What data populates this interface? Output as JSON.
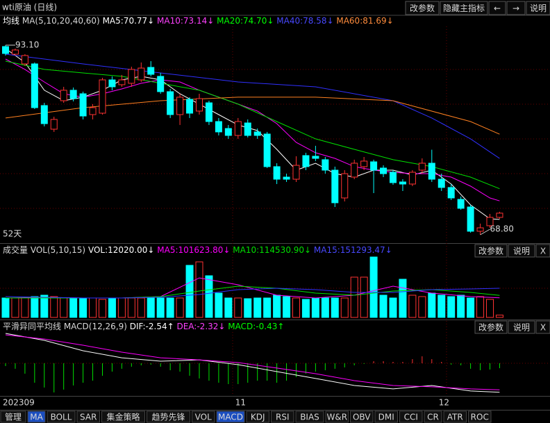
{
  "header": {
    "title": "wti原油 (日线)",
    "buttons": [
      "改参数",
      "隐藏主指标",
      "←",
      "→",
      "说明"
    ]
  },
  "price_panel": {
    "type": "candlestick",
    "legend_title": "均线",
    "legend_params": "MA(5,10,20,40,60)",
    "dates": [
      "202309",
      null,
      null,
      null,
      null,
      null,
      null,
      null,
      null,
      null,
      null,
      null,
      null,
      null,
      null,
      null,
      null,
      null,
      null,
      null,
      null,
      null,
      null,
      null,
      "11",
      null,
      null,
      null,
      null,
      null,
      null,
      null,
      null,
      null,
      null,
      null,
      null,
      null,
      null,
      null,
      null,
      null,
      null,
      null,
      null,
      "12",
      null,
      null,
      null,
      null,
      null,
      null
    ],
    "candles": {
      "open": [
        92.92,
        91.94,
        90.7,
        90.7,
        85.36,
        82.33,
        85.98,
        87.32,
        86.87,
        84.2,
        84.38,
        88.65,
        88.03,
        88.21,
        88.65,
        90.25,
        89.1,
        87.14,
        84.2,
        86.16,
        84.65,
        85.71,
        83.31,
        82.42,
        81.53,
        83.13,
        81.98,
        81.71,
        77.53,
        76.19,
        75.92,
        78.95,
        78.86,
        78.42,
        77.08,
        73.52,
        76.19,
        77.53,
        78.15,
        77.35,
        76.81,
        75.57,
        75.3,
        77.08,
        77.97,
        75.92,
        74.86,
        73.34,
        72.36,
        69.25,
        69.96,
        71.03
      ],
      "high": [
        93.1,
        92.66,
        91.94,
        90.88,
        85.71,
        83.93,
        87.76,
        87.67,
        87.14,
        85.54,
        88.92,
        89.1,
        89.28,
        90.34,
        90.88,
        91.05,
        89.54,
        87.49,
        86.87,
        86.43,
        86.87,
        85.98,
        83.76,
        82.87,
        83.76,
        83.58,
        82.42,
        81.98,
        77.97,
        76.63,
        78.86,
        79.31,
        80.2,
        78.77,
        77.53,
        77.08,
        78.42,
        78.77,
        78.42,
        77.7,
        77.08,
        75.92,
        77.08,
        78.59,
        79.7,
        76.63,
        75.3,
        73.7,
        72.63,
        70.23,
        71.47,
        71.75
      ],
      "low": [
        91.77,
        91.77,
        90.43,
        84.91,
        82.69,
        81.98,
        85.71,
        85.89,
        83.58,
        83.58,
        84.2,
        87.32,
        87.76,
        87.76,
        88.38,
        89.1,
        86.87,
        83.76,
        82.87,
        83.76,
        84.2,
        82.87,
        81.53,
        81.09,
        81.09,
        81.27,
        81.09,
        77.35,
        75.3,
        75.57,
        75.57,
        77.08,
        78.24,
        76.63,
        72.36,
        73.07,
        75.92,
        77.08,
        74.14,
        76.19,
        75.21,
        74.41,
        75.03,
        76.63,
        75.57,
        74.41,
        73.25,
        72.01,
        69.07,
        68.8,
        69.69,
        70.85
      ],
      "close": [
        92.03,
        92.48,
        91.77,
        85.09,
        83.04,
        83.58,
        87.32,
        86.25,
        84.02,
        85.09,
        88.65,
        87.76,
        88.65,
        89.99,
        90.16,
        89.36,
        87.14,
        84.2,
        86.43,
        84.38,
        86.25,
        83.31,
        81.98,
        81.53,
        83.31,
        81.53,
        81.53,
        77.53,
        75.92,
        75.92,
        77.7,
        77.53,
        78.59,
        77.08,
        72.9,
        76.63,
        77.97,
        78.24,
        77.08,
        76.63,
        75.48,
        75.3,
        76.81,
        77.97,
        75.92,
        74.86,
        73.52,
        72.19,
        69.25,
        69.69,
        71.03,
        71.57
      ]
    },
    "series": [
      {
        "label": "MA5:70.77↓",
        "color": "#ffffff",
        "text_color": "#ffffff",
        "x": [
          0,
          2,
          4,
          6,
          8,
          10,
          12,
          14,
          16,
          18,
          20,
          22,
          24,
          26,
          28,
          30,
          32,
          34,
          36,
          38,
          40,
          42,
          44,
          46,
          48,
          50,
          51
        ],
        "values": [
          92.66,
          90.88,
          87.32,
          85.98,
          86.43,
          87.32,
          88.65,
          89.1,
          88.65,
          86.87,
          85.54,
          84.2,
          82.87,
          82.15,
          79.75,
          77.08,
          77.97,
          76.63,
          76.19,
          77.08,
          77.08,
          76.46,
          77.08,
          75.3,
          72.63,
          70.85,
          70.77
        ]
      },
      {
        "label": "MA10:73.14↓",
        "color": "#ff00ff",
        "text_color": "#ff40ff",
        "x": [
          0,
          2,
          4,
          6,
          8,
          10,
          12,
          14,
          16,
          18,
          20,
          22,
          24,
          26,
          28,
          30,
          32,
          34,
          36,
          38,
          40,
          42,
          44,
          46,
          48,
          50,
          51
        ],
        "values": [
          91.32,
          89.99,
          88.38,
          86.87,
          86.43,
          86.87,
          87.49,
          88.21,
          88.65,
          88.38,
          87.32,
          86.43,
          85.54,
          84.65,
          83.04,
          80.64,
          79.31,
          78.59,
          77.53,
          77.08,
          76.81,
          76.63,
          76.63,
          76.19,
          75.03,
          73.52,
          73.14
        ]
      },
      {
        "label": "MA20:74.70↓",
        "color": "#00e000",
        "text_color": "#00ff00",
        "x": [
          0,
          4,
          8,
          12,
          16,
          20,
          24,
          28,
          32,
          36,
          40,
          44,
          48,
          51
        ],
        "values": [
          91.05,
          89.99,
          89.54,
          89.1,
          88.21,
          87.32,
          85.54,
          83.31,
          81.09,
          79.75,
          78.42,
          77.53,
          76.19,
          74.7
        ]
      },
      {
        "label": "MA40:78.58↓",
        "color": "#3030ff",
        "text_color": "#4848ff",
        "x": [
          0,
          8,
          16,
          24,
          32,
          40,
          44,
          48,
          51
        ],
        "values": [
          91.94,
          90.7,
          89.54,
          88.38,
          87.76,
          85.98,
          83.76,
          81.09,
          78.58
        ]
      },
      {
        "label": "MA60:81.69↓",
        "color": "#ff8020",
        "text_color": "#ff8c3c",
        "x": [
          0,
          8,
          16,
          24,
          32,
          40,
          48,
          51
        ],
        "values": [
          83.76,
          85.09,
          85.98,
          86.43,
          86.43,
          85.98,
          83.31,
          81.69
        ]
      }
    ],
    "annotations": {
      "high": "93.10",
      "low": "68.80",
      "days": "52天"
    }
  },
  "volume_panel": {
    "type": "bar",
    "legend_title": "成交量 VOL(5,10,15)",
    "vol_label": "VOL:12020.00↓",
    "buttons": [
      "改参数",
      "说明",
      "X"
    ],
    "values": [
      100800,
      100800,
      100800,
      108000,
      115200,
      108000,
      100800,
      100800,
      100800,
      100800,
      93600,
      100800,
      100800,
      100800,
      100800,
      100800,
      100800,
      100800,
      100800,
      270000,
      288000,
      216000,
      126000,
      100800,
      100800,
      97200,
      100800,
      100800,
      115200,
      108000,
      100800,
      93600,
      100800,
      100800,
      100800,
      100800,
      208800,
      208800,
      313200,
      115200,
      100800,
      198000,
      115200,
      108000,
      126000,
      115200,
      108000,
      115200,
      100800,
      108000,
      93600,
      12020
    ],
    "series": [
      {
        "label": "MA5:101623.80↓",
        "color": "#ff00ff",
        "x": [
          0,
          4,
          8,
          12,
          16,
          20,
          24,
          28,
          32,
          36,
          40,
          44,
          48,
          51
        ],
        "values": [
          100800,
          104400,
          100800,
          100800,
          108000,
          205000,
          169200,
          115200,
          100800,
          115200,
          162000,
          126000,
          108000,
          101623.8
        ]
      },
      {
        "label": "MA10:114530.90↓",
        "color": "#00e000",
        "x": [
          0,
          4,
          8,
          12,
          16,
          20,
          24,
          28,
          32,
          36,
          40,
          44,
          48,
          51
        ],
        "values": [
          100800,
          100800,
          100800,
          100800,
          108000,
          136800,
          162000,
          151200,
          126000,
          115200,
          136800,
          144000,
          129600,
          114530.9
        ]
      },
      {
        "label": "MA15:151293.47↓",
        "color": "#3030ff",
        "x": [
          0,
          4,
          8,
          12,
          16,
          20,
          24,
          28,
          32,
          36,
          40,
          44,
          48,
          51
        ],
        "values": [
          108000,
          104400,
          100800,
          100800,
          104400,
          118800,
          144000,
          151200,
          144000,
          129600,
          129600,
          144000,
          147600,
          151293.47
        ]
      }
    ]
  },
  "macd_panel": {
    "type": "macd",
    "legend_title": "平滑异同平均线 MACD(12,26,9)",
    "buttons": [
      "改参数",
      "说明",
      "X"
    ],
    "histogram": {
      "label": "MACD:-0.43↑",
      "color_up": "#ff3030",
      "color_down": "#00e000",
      "values": [
        -0.24,
        -0.48,
        -0.91,
        -1.7,
        -2.12,
        -2.55,
        -2.3,
        -1.94,
        -1.7,
        -1.52,
        -1.09,
        -0.73,
        -0.48,
        -0.3,
        -0.18,
        -0.12,
        -0.3,
        -0.61,
        -0.73,
        -1.09,
        -1.33,
        -1.52,
        -1.7,
        -1.82,
        -1.82,
        -1.7,
        -1.52,
        -1.52,
        -1.7,
        -1.52,
        -1.21,
        -0.91,
        -0.73,
        -0.61,
        -0.48,
        -0.36,
        -0.18,
        -0.06,
        0.18,
        0.18,
        0.12,
        0.12,
        0.36,
        0.61,
        0.36,
        0.12,
        -0.12,
        -0.18,
        -0.48,
        -0.61,
        -0.55,
        -0.43
      ]
    },
    "series": [
      {
        "label": "DIF:-2.54↑",
        "color": "#ffffff",
        "x": [
          0,
          4,
          8,
          12,
          16,
          20,
          24,
          28,
          32,
          36,
          40,
          44,
          48,
          51
        ],
        "values": [
          2.61,
          2.0,
          1.09,
          0.48,
          0.18,
          0.3,
          -0.12,
          -0.73,
          -1.33,
          -1.94,
          -2.24,
          -1.94,
          -2.42,
          -2.54
        ]
      },
      {
        "label": "DEA:-2.32↓",
        "color": "#ff00ff",
        "x": [
          0,
          4,
          8,
          12,
          16,
          20,
          24,
          28,
          32,
          36,
          40,
          44,
          48,
          51
        ],
        "values": [
          2.48,
          2.12,
          1.58,
          0.97,
          0.48,
          0.3,
          0.06,
          -0.42,
          -0.91,
          -1.52,
          -1.94,
          -2.06,
          -2.24,
          -2.32
        ]
      }
    ]
  },
  "tabs": {
    "items": [
      "管理",
      "MA",
      "BOLL",
      "SAR",
      "集金策略",
      "趋势先锋",
      "VOL",
      "MACD",
      "KDJ",
      "RSI",
      "BIAS",
      "W&R",
      "OBV",
      "DMI",
      "CCI",
      "CR",
      "ATR",
      "ROC"
    ],
    "active": [
      "MA",
      "MACD"
    ]
  }
}
